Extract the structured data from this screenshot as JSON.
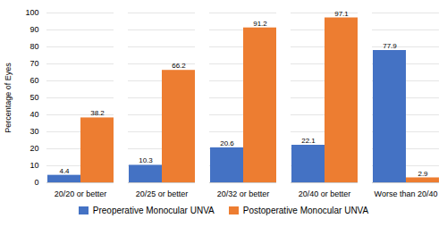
{
  "chart_data": {
    "type": "bar",
    "categories": [
      "20/20 or better",
      "20/25 or better",
      "20/32 or better",
      "20/40 or better",
      "Worse than 20/40"
    ],
    "series": [
      {
        "name": "Preoperative Monocular UNVA",
        "color": "#4472C4",
        "values": [
          4.4,
          10.3,
          20.6,
          22.1,
          77.9
        ]
      },
      {
        "name": "Postoperative Monocular UNVA",
        "color": "#ED7D31",
        "values": [
          38.2,
          66.2,
          91.2,
          97.1,
          2.9
        ]
      }
    ],
    "ylabel": "Percentage of Eyes",
    "ylim": [
      0,
      100
    ],
    "yticks": [
      0,
      10,
      20,
      30,
      40,
      50,
      60,
      70,
      80,
      90,
      100
    ],
    "grid": true,
    "data_labels": true,
    "legend": "bottom"
  }
}
